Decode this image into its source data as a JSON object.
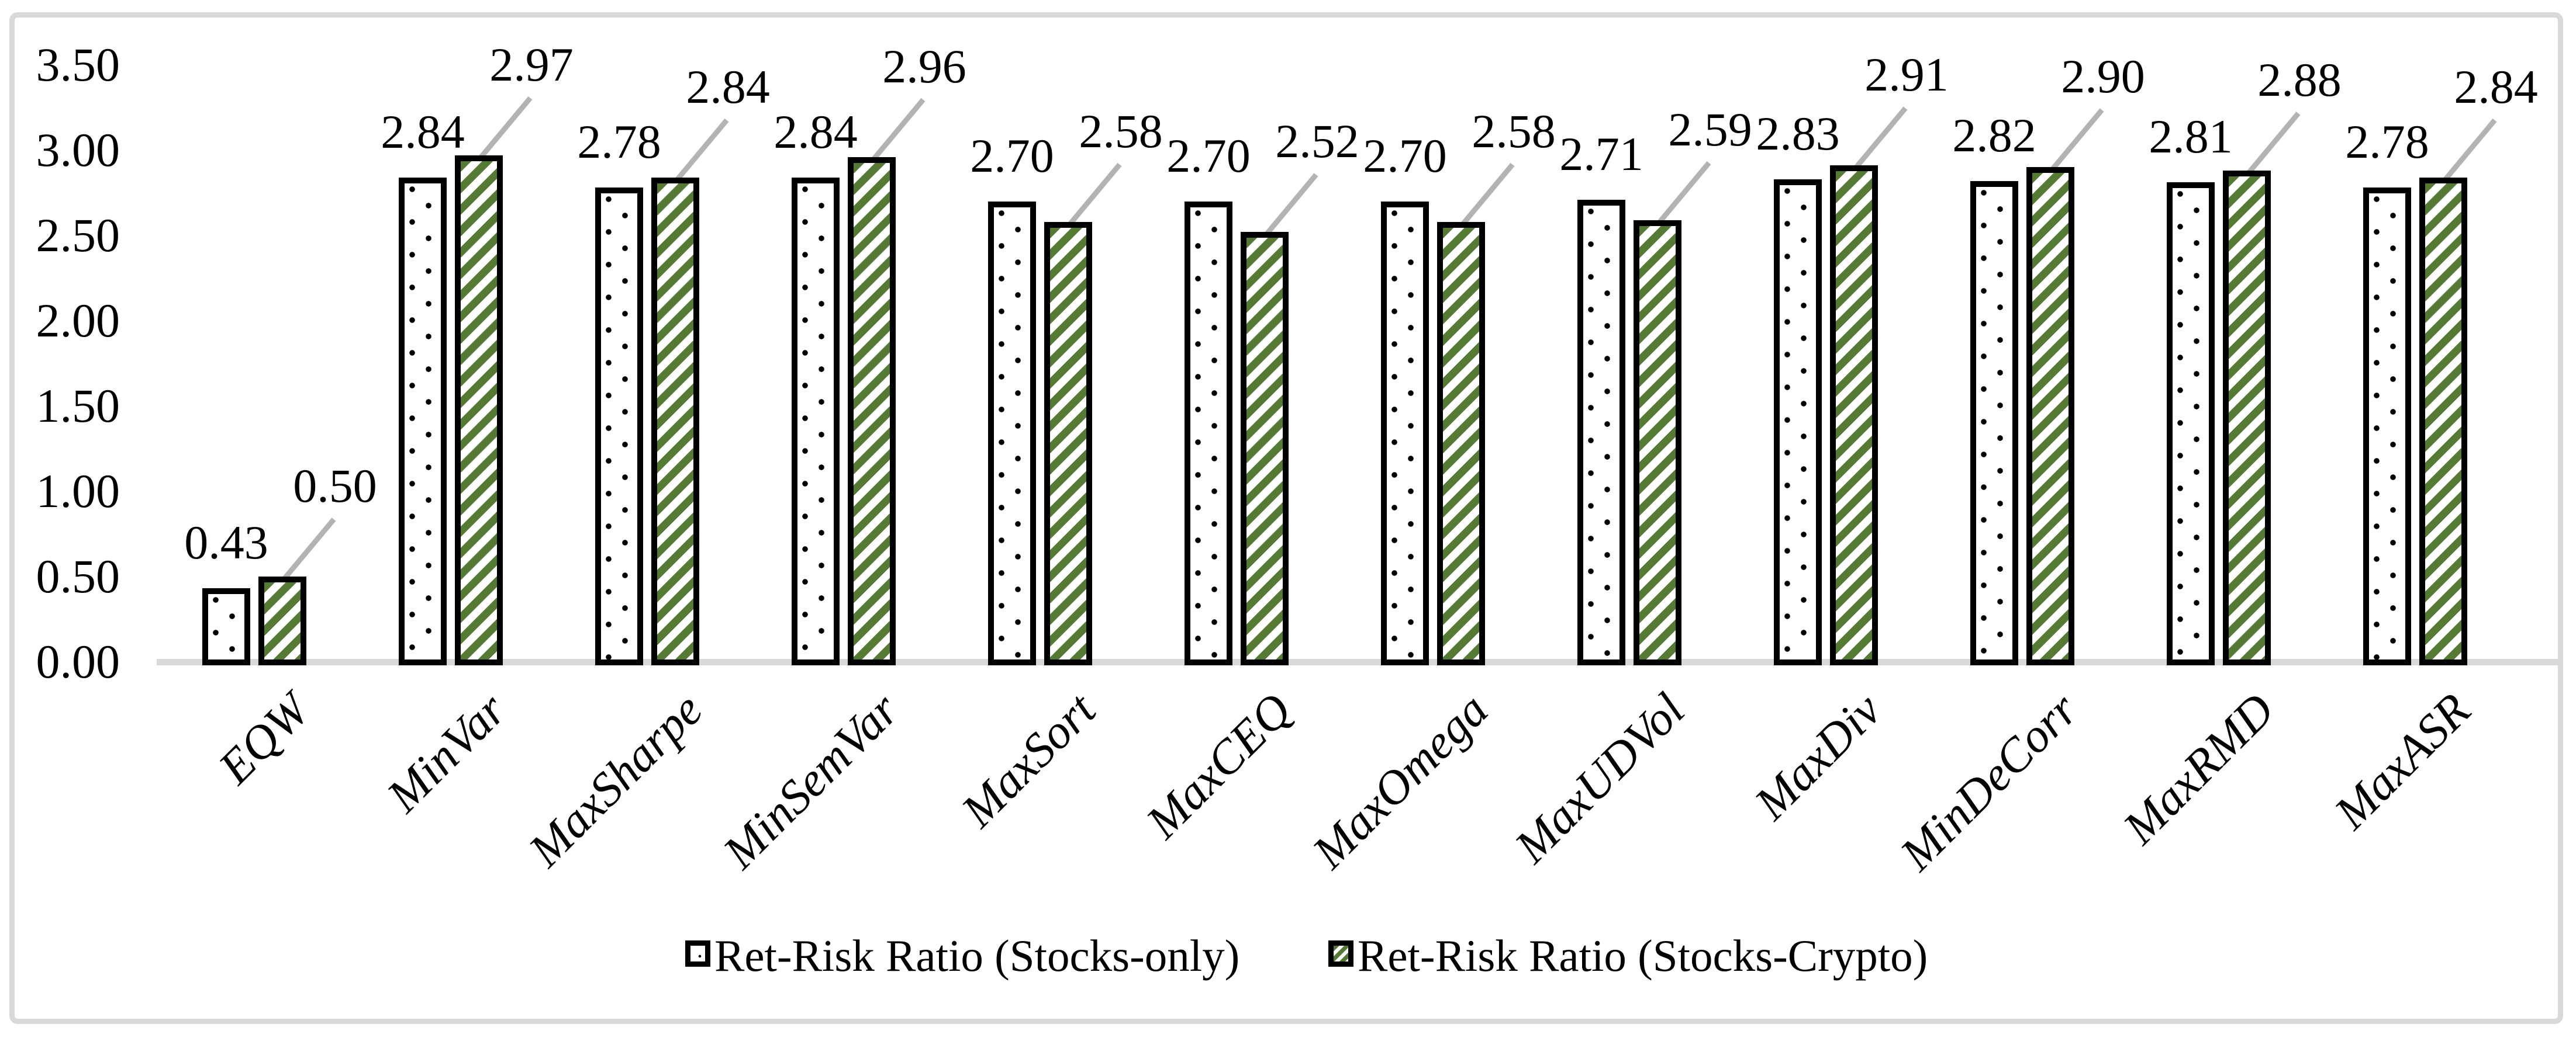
{
  "chart_data": {
    "type": "bar",
    "title": "",
    "xlabel": "",
    "ylabel": "",
    "categories": [
      "EQW",
      "MinVar",
      "MaxSharpe",
      "MinSemVar",
      "MaxSort",
      "MaxCEQ",
      "MaxOmega",
      "MaxUDVol",
      "MaxDiv",
      "MinDeCorr",
      "MaxRMD",
      "MaxASR"
    ],
    "series": [
      {
        "name": "Ret-Risk Ratio (Stocks-only)",
        "pattern": "dots",
        "fill": "#ffffff",
        "pattern_color": "#000000",
        "values": [
          0.43,
          2.84,
          2.78,
          2.84,
          2.7,
          2.7,
          2.7,
          2.71,
          2.83,
          2.82,
          2.81,
          2.78
        ],
        "value_labels": [
          "0.43",
          "2.84",
          "2.78",
          "2.84",
          "2.70",
          "2.70",
          "2.70",
          "2.71",
          "2.83",
          "2.82",
          "2.81",
          "2.78"
        ]
      },
      {
        "name": "Ret-Risk Ratio (Stocks-Crypto)",
        "pattern": "diagonal-stripes",
        "fill": "#ffffff",
        "pattern_color": "#547a33",
        "values": [
          0.5,
          2.97,
          2.84,
          2.96,
          2.58,
          2.52,
          2.58,
          2.59,
          2.91,
          2.9,
          2.88,
          2.84
        ],
        "value_labels": [
          "0.50",
          "2.97",
          "2.84",
          "2.96",
          "2.58",
          "2.52",
          "2.58",
          "2.59",
          "2.91",
          "2.90",
          "2.88",
          "2.84"
        ]
      }
    ],
    "ylim": [
      0.0,
      3.5
    ],
    "ytick_step": 0.5,
    "yticks": [
      "0.00",
      "0.50",
      "1.00",
      "1.50",
      "2.00",
      "2.50",
      "3.00",
      "3.50"
    ],
    "grid": false,
    "data_labels": true,
    "legend_position": "bottom-center",
    "colors": {
      "bar_border": "#000000",
      "stripe_green": "#547a33",
      "leader_line": "#b3b3b3",
      "axis_line": "#d9d9d9",
      "frame_border": "#d9d9d9",
      "text": "#000000",
      "background": "#ffffff"
    }
  }
}
